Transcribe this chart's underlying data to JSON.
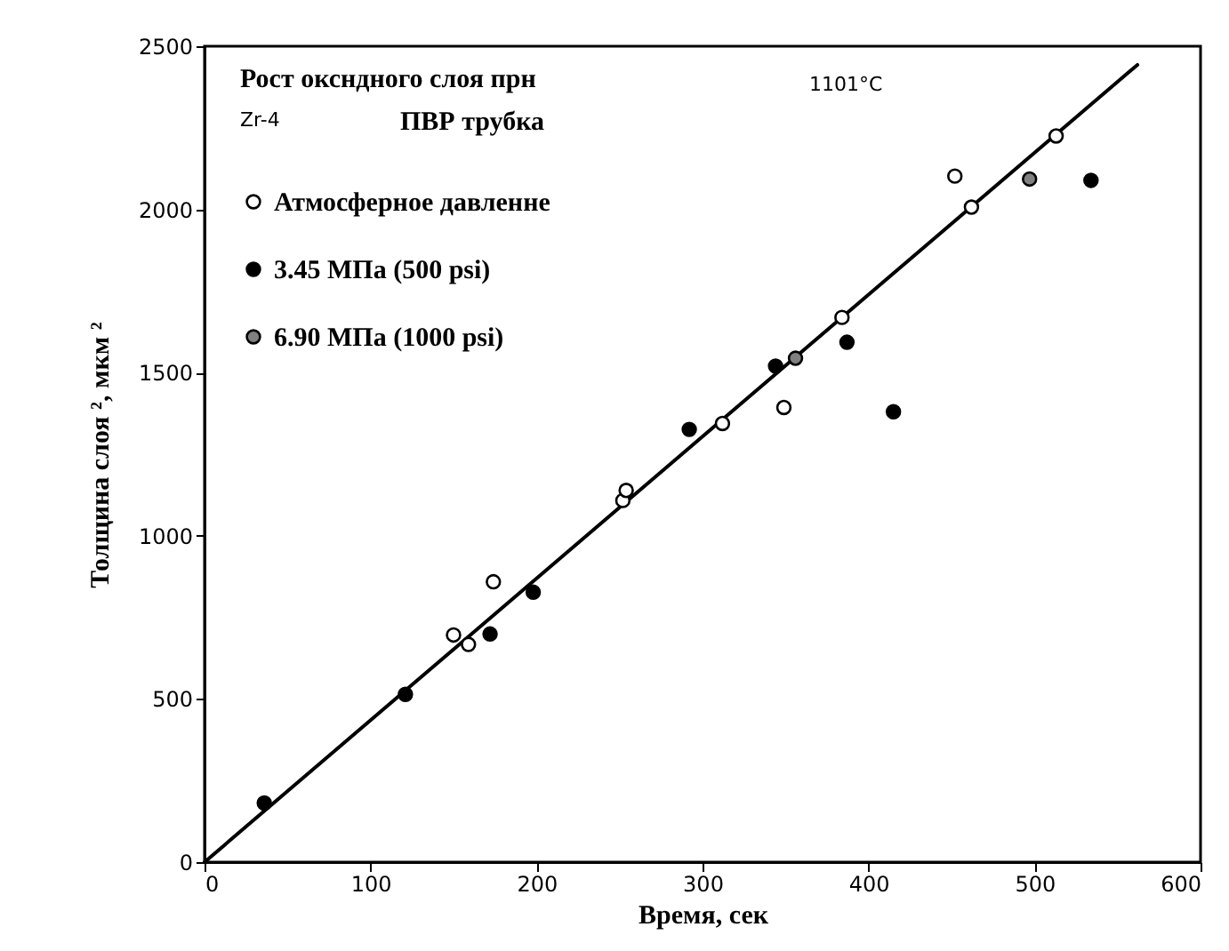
{
  "chart_data": {
    "type": "scatter",
    "xlabel": "Время, сек",
    "ylabel": "Толщина слоя ², мкм ²",
    "annotations": [
      "Рост оксндного слоя прн",
      "1101°C",
      "Zr-4",
      "ПВР трубка"
    ],
    "xlim": [
      0,
      600
    ],
    "ylim": [
      0,
      2500
    ],
    "xticks": [
      0,
      100,
      200,
      300,
      400,
      500,
      600
    ],
    "yticks": [
      0,
      500,
      1000,
      1500,
      2000,
      2500
    ],
    "grid": false,
    "legend": "top left",
    "marker": "circle",
    "series": [
      {
        "name": "Атмосферное давленне",
        "color": "#ffffff",
        "x": [
          150,
          159,
          174,
          252,
          254,
          312,
          349,
          384,
          452,
          462,
          513
        ],
        "values": [
          696,
          667,
          859,
          1108,
          1139,
          1344,
          1393,
          1669,
          2102,
          2007,
          2225
        ]
      },
      {
        "name": "3.45 МПа (500 psi)",
        "color": "#000000",
        "x": [
          36,
          121,
          172,
          198,
          292,
          344,
          387,
          415,
          534
        ],
        "values": [
          181,
          514,
          699,
          827,
          1326,
          1520,
          1593,
          1380,
          2089
        ]
      },
      {
        "name": "6.90 МПа (1000 psi)",
        "color": "#808080",
        "x": [
          356,
          497
        ],
        "values": [
          1544,
          2093
        ]
      },
      {
        "type": "line",
        "marker": "none",
        "color": "#000000",
        "x": [
          0,
          562
        ],
        "values": [
          0,
          2443
        ]
      }
    ]
  }
}
